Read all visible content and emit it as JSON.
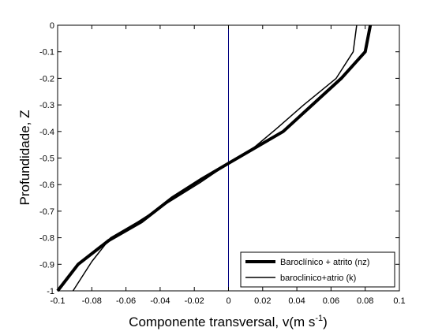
{
  "chart_data": {
    "type": "line",
    "title": "",
    "xlabel": "Componente transversal, v(m s",
    "xlabel_sup": "-1",
    "xlabel_close": ")",
    "ylabel": "Profundidade, Z",
    "xlim": [
      -0.1,
      0.1
    ],
    "ylim": [
      -1,
      0
    ],
    "xticks": [
      -0.1,
      -0.08,
      -0.06,
      -0.04,
      -0.02,
      0,
      0.02,
      0.04,
      0.06,
      0.08,
      0.1
    ],
    "xtick_labels": [
      "-0.1",
      "-0.08",
      "-0.06",
      "-0.04",
      "-0.02",
      "0",
      "0.02",
      "0.04",
      "0.06",
      "0.08",
      "0.1"
    ],
    "yticks": [
      0,
      -0.1,
      -0.2,
      -0.3,
      -0.4,
      -0.5,
      -0.6,
      -0.7,
      -0.8,
      -0.9,
      -1
    ],
    "ytick_labels": [
      "0",
      "-0.1",
      "-0.2",
      "-0.3",
      "-0.4",
      "-0.5",
      "-0.6",
      "-0.7",
      "-0.8",
      "-0.9",
      "-1"
    ],
    "grid": false,
    "legend_position": "bottom-right",
    "reference_line": {
      "x": 0,
      "color": "#00007f"
    },
    "series": [
      {
        "name": "Baroclínico + atrito (nz)",
        "color": "#000000",
        "style": "thick",
        "x": [
          0.083,
          0.08,
          0.066,
          0.049,
          0.032,
          0.016,
          0.0,
          -0.016,
          -0.033,
          -0.051,
          -0.07,
          -0.088,
          -0.1
        ],
        "y": [
          0,
          -0.1,
          -0.2,
          -0.3,
          -0.4,
          -0.46,
          -0.52,
          -0.58,
          -0.65,
          -0.74,
          -0.81,
          -0.9,
          -1
        ]
      },
      {
        "name": "baroclinico+atrio (k)",
        "color": "#000000",
        "style": "thin",
        "x": [
          0.075,
          0.073,
          0.063,
          0.044,
          0.028,
          0.015,
          0.0,
          -0.016,
          -0.036,
          -0.053,
          -0.069,
          -0.08,
          -0.091
        ],
        "y": [
          0,
          -0.1,
          -0.2,
          -0.3,
          -0.39,
          -0.46,
          -0.52,
          -0.59,
          -0.67,
          -0.74,
          -0.8,
          -0.89,
          -1
        ]
      }
    ]
  }
}
